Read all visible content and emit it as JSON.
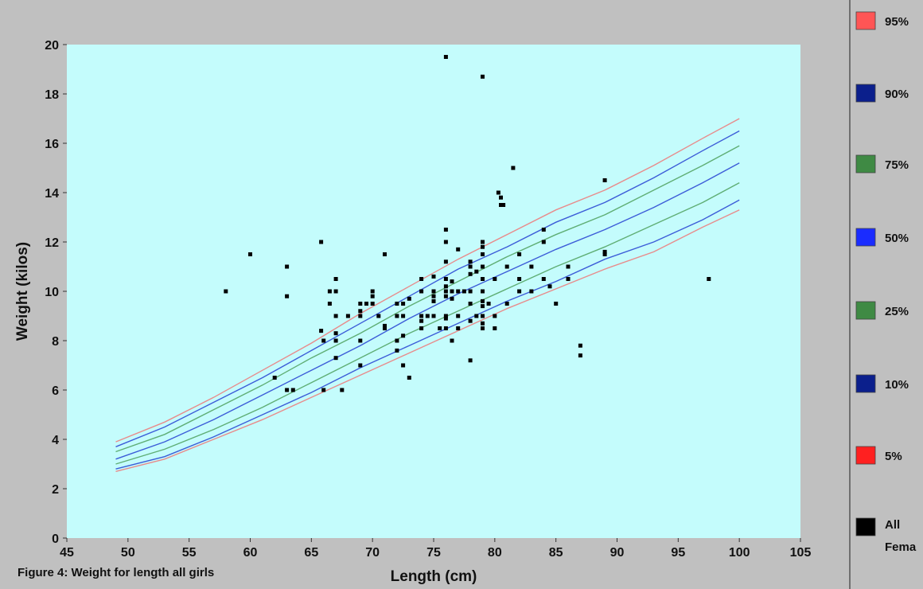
{
  "caption": "Figure 4: Weight for length all girls",
  "chart_data": {
    "type": "scatter",
    "title": "",
    "xlabel": "Length (cm)",
    "ylabel": "Weight (kilos)",
    "xlim": [
      45,
      105
    ],
    "ylim": [
      0,
      20
    ],
    "x_ticks": [
      45,
      50,
      55,
      60,
      65,
      70,
      75,
      80,
      85,
      90,
      95,
      100,
      105
    ],
    "y_ticks": [
      0,
      2,
      4,
      6,
      8,
      10,
      12,
      14,
      16,
      18,
      20
    ],
    "grid": false,
    "plot_background": "#c4fcfc",
    "legend_position": "right",
    "legend": [
      {
        "label": "95%",
        "color": "#ff5555"
      },
      {
        "label": "90%",
        "color": "#0b1f8c"
      },
      {
        "label": "75%",
        "color": "#3f8a44"
      },
      {
        "label": "50%",
        "color": "#1a2cff"
      },
      {
        "label": "25%",
        "color": "#3f8a44"
      },
      {
        "label": "10%",
        "color": "#0b1f8c"
      },
      {
        "label": "5%",
        "color": "#ff2020"
      },
      {
        "label": "All Fema",
        "color": "#000000"
      }
    ],
    "curves_x": [
      49,
      53,
      57,
      61,
      65,
      69,
      73,
      77,
      81,
      85,
      89,
      93,
      97,
      100
    ],
    "curves": [
      {
        "name": "95%",
        "color": "#e88b8b",
        "y": [
          3.9,
          4.7,
          5.7,
          6.8,
          7.9,
          9.1,
          10.2,
          11.3,
          12.3,
          13.3,
          14.1,
          15.1,
          16.2,
          17.0
        ]
      },
      {
        "name": "90%",
        "color": "#3c5cd8",
        "y": [
          3.7,
          4.5,
          5.5,
          6.5,
          7.6,
          8.7,
          9.8,
          10.9,
          11.8,
          12.8,
          13.6,
          14.6,
          15.7,
          16.5
        ]
      },
      {
        "name": "75%",
        "color": "#5fae74",
        "y": [
          3.5,
          4.2,
          5.2,
          6.2,
          7.3,
          8.3,
          9.4,
          10.4,
          11.4,
          12.3,
          13.1,
          14.1,
          15.1,
          15.9
        ]
      },
      {
        "name": "50%",
        "color": "#3c5cd8",
        "y": [
          3.2,
          3.9,
          4.8,
          5.8,
          6.8,
          7.8,
          8.9,
          9.9,
          10.8,
          11.7,
          12.5,
          13.4,
          14.4,
          15.2
        ]
      },
      {
        "name": "25%",
        "color": "#5fae74",
        "y": [
          3.0,
          3.6,
          4.4,
          5.3,
          6.3,
          7.3,
          8.3,
          9.2,
          10.1,
          11.0,
          11.8,
          12.7,
          13.6,
          14.4
        ]
      },
      {
        "name": "10%",
        "color": "#3c5cd8",
        "y": [
          2.8,
          3.3,
          4.1,
          5.0,
          5.9,
          6.9,
          7.8,
          8.7,
          9.6,
          10.4,
          11.3,
          12.0,
          12.9,
          13.7
        ]
      },
      {
        "name": "5%",
        "color": "#e88b8b",
        "y": [
          2.7,
          3.2,
          4.0,
          4.8,
          5.7,
          6.6,
          7.5,
          8.4,
          9.3,
          10.1,
          10.9,
          11.6,
          12.6,
          13.3
        ]
      }
    ],
    "points": [
      [
        58,
        10
      ],
      [
        60,
        11.5
      ],
      [
        62,
        6.5
      ],
      [
        63,
        11
      ],
      [
        63,
        9.8
      ],
      [
        63,
        6
      ],
      [
        63.5,
        6
      ],
      [
        65.8,
        12
      ],
      [
        65.8,
        8.4
      ],
      [
        66,
        8
      ],
      [
        66,
        6
      ],
      [
        66.5,
        10
      ],
      [
        66.5,
        9.5
      ],
      [
        67,
        10.5
      ],
      [
        67,
        10
      ],
      [
        67,
        9
      ],
      [
        67,
        8.3
      ],
      [
        67,
        8
      ],
      [
        67,
        7.3
      ],
      [
        67.5,
        6
      ],
      [
        68,
        9
      ],
      [
        69,
        9.5
      ],
      [
        69,
        9.2
      ],
      [
        69,
        9
      ],
      [
        69,
        8
      ],
      [
        69,
        7
      ],
      [
        69.5,
        9.5
      ],
      [
        70,
        10
      ],
      [
        70,
        9.8
      ],
      [
        70,
        9.5
      ],
      [
        70.5,
        9
      ],
      [
        71,
        11.5
      ],
      [
        71,
        8.6
      ],
      [
        71,
        8.5
      ],
      [
        72,
        9.5
      ],
      [
        72,
        9
      ],
      [
        72,
        8
      ],
      [
        72,
        7.6
      ],
      [
        72.5,
        9.5
      ],
      [
        72.5,
        9
      ],
      [
        72.5,
        8.2
      ],
      [
        72.5,
        7
      ],
      [
        73,
        9.7
      ],
      [
        73,
        6.5
      ],
      [
        74,
        10.5
      ],
      [
        74,
        10
      ],
      [
        74,
        9
      ],
      [
        74,
        8.8
      ],
      [
        74,
        8.5
      ],
      [
        74.5,
        9
      ],
      [
        75,
        10.6
      ],
      [
        75,
        10
      ],
      [
        75,
        9.8
      ],
      [
        75,
        9.6
      ],
      [
        75,
        9
      ],
      [
        75.5,
        8.5
      ],
      [
        76,
        19.5
      ],
      [
        76,
        12.5
      ],
      [
        76,
        12
      ],
      [
        76,
        11.2
      ],
      [
        76,
        10.5
      ],
      [
        76,
        10.2
      ],
      [
        76,
        10
      ],
      [
        76,
        9.8
      ],
      [
        76,
        9
      ],
      [
        76,
        8.9
      ],
      [
        76,
        8.5
      ],
      [
        76.5,
        10.4
      ],
      [
        76.5,
        10
      ],
      [
        76.5,
        9.7
      ],
      [
        76.5,
        8
      ],
      [
        77,
        11.7
      ],
      [
        77,
        10
      ],
      [
        77,
        9
      ],
      [
        77,
        8.5
      ],
      [
        77.5,
        10
      ],
      [
        78,
        11.2
      ],
      [
        78,
        11
      ],
      [
        78,
        10.7
      ],
      [
        78,
        10
      ],
      [
        78,
        9.5
      ],
      [
        78,
        8.8
      ],
      [
        78,
        7.2
      ],
      [
        78.5,
        10.8
      ],
      [
        78.5,
        9
      ],
      [
        79,
        18.7
      ],
      [
        79,
        12
      ],
      [
        79,
        11.8
      ],
      [
        79,
        11.5
      ],
      [
        79,
        11
      ],
      [
        79,
        10.5
      ],
      [
        79,
        10
      ],
      [
        79,
        9.6
      ],
      [
        79,
        9.4
      ],
      [
        79,
        9
      ],
      [
        79,
        8.7
      ],
      [
        79,
        8.5
      ],
      [
        79.5,
        9.5
      ],
      [
        80,
        10.5
      ],
      [
        80,
        9
      ],
      [
        80,
        8.5
      ],
      [
        80.3,
        14
      ],
      [
        80.5,
        13.8
      ],
      [
        80.5,
        13.5
      ],
      [
        80.7,
        13.5
      ],
      [
        81,
        11
      ],
      [
        81,
        9.5
      ],
      [
        81.5,
        15
      ],
      [
        82,
        11.5
      ],
      [
        82,
        10.5
      ],
      [
        82,
        10
      ],
      [
        83,
        11
      ],
      [
        83,
        10
      ],
      [
        84,
        12.5
      ],
      [
        84,
        12
      ],
      [
        84,
        10.5
      ],
      [
        84.5,
        10.2
      ],
      [
        85,
        9.5
      ],
      [
        86,
        11
      ],
      [
        86,
        10.5
      ],
      [
        87,
        7.8
      ],
      [
        87,
        7.4
      ],
      [
        89,
        14.5
      ],
      [
        89,
        11.6
      ],
      [
        89,
        11.5
      ],
      [
        97.5,
        10.5
      ]
    ]
  }
}
